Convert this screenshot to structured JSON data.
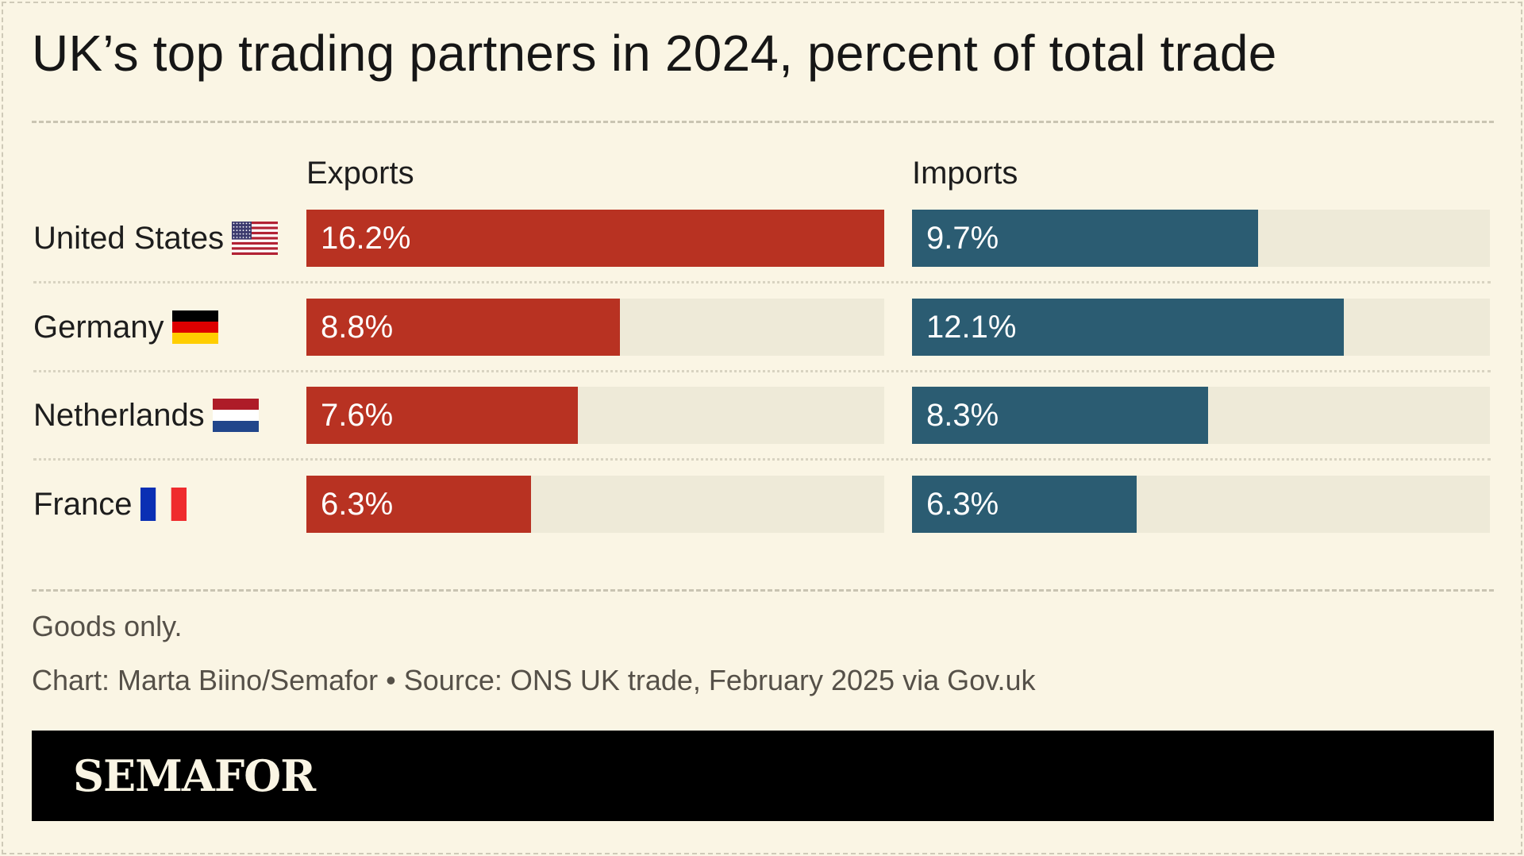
{
  "chart_data": {
    "type": "bar",
    "title": "UK’s top trading partners in 2024, percent of total trade",
    "categories": [
      "United States",
      "Germany",
      "Netherlands",
      "France"
    ],
    "series": [
      {
        "name": "Exports",
        "values": [
          16.2,
          8.8,
          7.6,
          6.3
        ],
        "labels": [
          "16.2%",
          "8.8%",
          "7.6%",
          "6.3%"
        ],
        "color": "#B83222"
      },
      {
        "name": "Imports",
        "values": [
          9.7,
          12.1,
          8.3,
          6.3
        ],
        "labels": [
          "9.7%",
          "12.1%",
          "8.3%",
          "6.3%"
        ],
        "color": "#2B5C72"
      }
    ],
    "xlim": [
      0,
      16.2
    ],
    "flags": [
      "us-flag-icon",
      "germany-flag-icon",
      "netherlands-flag-icon",
      "france-flag-icon"
    ],
    "note": "Goods only.",
    "credit": "Chart: Marta Biino/Semafor • Source: ONS UK trade, February 2025 via Gov.uk"
  },
  "brand": {
    "logo": "SEMAFOR",
    "background": "#FAF5E4",
    "track_color": "#EEEAD8"
  }
}
